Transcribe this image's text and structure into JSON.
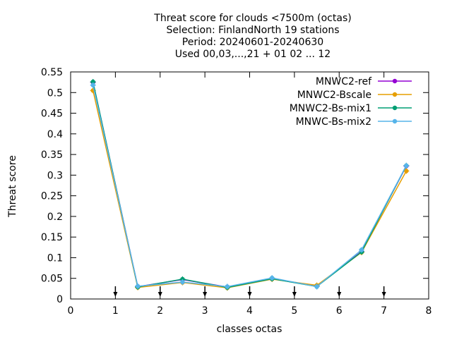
{
  "chart_data": {
    "type": "line",
    "title_lines": [
      "Threat score  for clouds <7500m (octas)",
      "Selection: FinlandNorth     19 stations",
      "Period: 20240601-20240630",
      "Used 00,03,...,21 + 01 02 ... 12"
    ],
    "xlabel": "classes octas",
    "ylabel": "Threat score",
    "xlim": [
      0,
      8
    ],
    "ylim": [
      0,
      0.55
    ],
    "x_ticks": [
      0,
      1,
      2,
      3,
      4,
      5,
      6,
      7,
      8
    ],
    "x_tick_labels": [
      "0",
      "1",
      "2",
      "3",
      "4",
      "5",
      "6",
      "7",
      "8"
    ],
    "y_ticks": [
      0,
      0.05,
      0.1,
      0.15,
      0.2,
      0.25,
      0.3,
      0.35,
      0.4,
      0.45,
      0.5,
      0.55
    ],
    "y_tick_labels": [
      "0",
      "0.05",
      "0.1",
      "0.15",
      "0.2",
      "0.25",
      "0.3",
      "0.35",
      "0.4",
      "0.45",
      "0.5",
      "0.55"
    ],
    "arrow_markers_x": [
      1,
      2,
      3,
      4,
      5,
      6,
      7
    ],
    "legend_position": "top-right",
    "grid": false,
    "x": [
      0.5,
      1.5,
      2.5,
      3.5,
      4.5,
      5.5,
      6.5,
      7.5
    ],
    "series": [
      {
        "name": "MNWC2-ref",
        "color": "#9400d3",
        "values": [
          0.525,
          0.03,
          0.047,
          0.029,
          0.049,
          0.031,
          0.115,
          0.322
        ]
      },
      {
        "name": "MNWC2-Bscale",
        "color": "#e69f00",
        "values": [
          0.505,
          0.028,
          0.04,
          0.027,
          0.048,
          0.033,
          0.113,
          0.31
        ]
      },
      {
        "name": "MNWC2-Bs-mix1",
        "color": "#009e73",
        "values": [
          0.526,
          0.029,
          0.048,
          0.028,
          0.049,
          0.03,
          0.114,
          0.323
        ]
      },
      {
        "name": "MNWC-Bs-mix2",
        "color": "#56b4e9",
        "values": [
          0.518,
          0.031,
          0.041,
          0.03,
          0.051,
          0.03,
          0.119,
          0.323
        ]
      }
    ]
  }
}
